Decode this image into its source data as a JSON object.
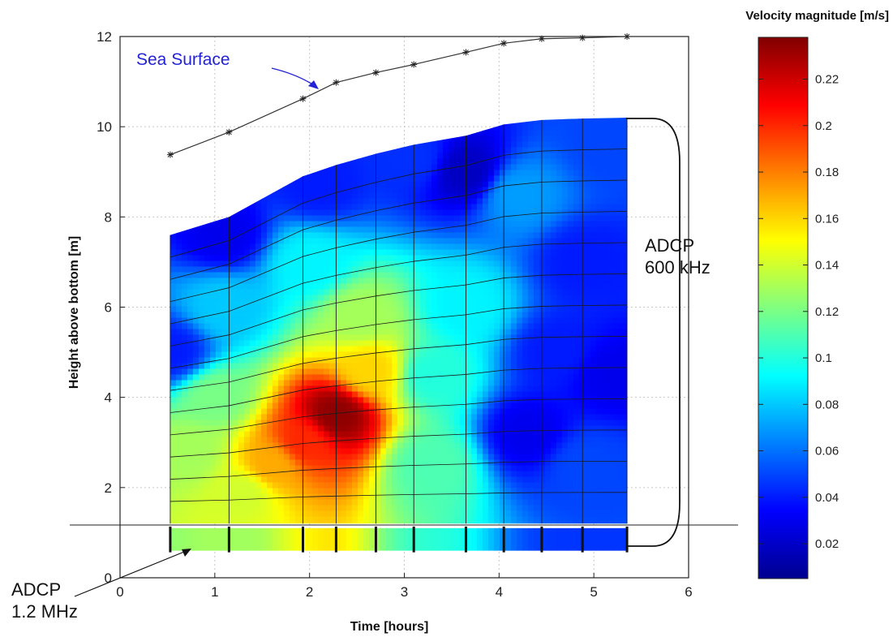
{
  "chart_data": {
    "type": "heatmap",
    "xlabel": "Time [hours]",
    "ylabel": "Height above bottom [m]",
    "xlim": [
      0,
      6
    ],
    "ylim": [
      0,
      12
    ],
    "xticks": [
      "0",
      "1",
      "2",
      "3",
      "4",
      "5",
      "6"
    ],
    "yticks": [
      "0",
      "2",
      "4",
      "6",
      "8",
      "10",
      "12"
    ],
    "grid": true,
    "colorbar": {
      "title": "Velocity magnitude [m/s]",
      "range": [
        0.005,
        0.238
      ],
      "ticks": [
        "0.02",
        "0.04",
        "0.06",
        "0.08",
        "0.1",
        "0.12",
        "0.14",
        "0.16",
        "0.18",
        "0.2",
        "0.22"
      ],
      "colormap": "jet"
    },
    "sea_surface": {
      "label": "Sea Surface",
      "x": [
        0.53,
        1.15,
        1.93,
        2.28,
        2.7,
        3.1,
        3.65,
        4.05,
        4.45,
        4.88,
        5.35
      ],
      "y": [
        9.38,
        9.88,
        10.62,
        10.98,
        11.2,
        11.38,
        11.65,
        11.85,
        11.95,
        11.97,
        12.0
      ]
    },
    "adcp_600khz": {
      "label": "ADCP\n600 kHz",
      "profile_times": [
        0.53,
        1.15,
        1.93,
        2.28,
        2.7,
        3.1,
        3.65,
        4.05,
        4.45,
        4.88,
        5.35
      ],
      "bottom_heights": [
        1.2,
        1.2,
        1.2,
        1.2,
        1.2,
        1.2,
        1.2,
        1.2,
        1.2,
        1.2,
        1.2
      ],
      "top_heights": [
        7.6,
        8.0,
        8.9,
        9.15,
        9.4,
        9.6,
        9.8,
        10.05,
        10.15,
        10.18,
        10.2
      ],
      "bins_per_profile": 13
    },
    "adcp_1_2mhz": {
      "label": "ADCP\n1.2 MHz",
      "profile_times": [
        0.53,
        1.15,
        1.93,
        2.28,
        2.7,
        3.1,
        3.65,
        4.05,
        4.45,
        4.88,
        5.35
      ],
      "bottom_heights": [
        0.6,
        0.6,
        0.6,
        0.6,
        0.6,
        0.6,
        0.6,
        0.6,
        0.6,
        0.6,
        0.6
      ],
      "top_heights": [
        1.1,
        1.1,
        1.1,
        1.1,
        1.1,
        1.1,
        1.1,
        1.1,
        1.1,
        1.1,
        1.1
      ]
    },
    "velocity_hotspots": [
      {
        "t": 2.28,
        "h": 3.6,
        "v": 0.235
      },
      {
        "t": 1.95,
        "h": 3.0,
        "v": 0.2
      },
      {
        "t": 1.6,
        "h": 2.5,
        "v": 0.17
      },
      {
        "t": 2.65,
        "h": 4.6,
        "v": 0.16
      },
      {
        "t": 2.55,
        "h": 5.8,
        "v": 0.13
      },
      {
        "t": 1.3,
        "h": 1.9,
        "v": 0.14
      },
      {
        "t": 0.75,
        "h": 2.8,
        "v": 0.13
      },
      {
        "t": 1.0,
        "h": 4.0,
        "v": 0.12
      },
      {
        "t": 3.3,
        "h": 2.5,
        "v": 0.11
      },
      {
        "t": 3.3,
        "h": 4.5,
        "v": 0.1
      },
      {
        "t": 3.65,
        "h": 6.0,
        "v": 0.09
      },
      {
        "t": 2.0,
        "h": 7.0,
        "v": 0.09
      },
      {
        "t": 1.1,
        "h": 6.0,
        "v": 0.08
      },
      {
        "t": 4.2,
        "h": 8.5,
        "v": 0.07
      },
      {
        "t": 1.1,
        "h": 7.6,
        "v": 0.03
      },
      {
        "t": 0.55,
        "h": 5.0,
        "v": 0.04
      },
      {
        "t": 2.1,
        "h": 8.7,
        "v": 0.04
      },
      {
        "t": 3.1,
        "h": 9.3,
        "v": 0.045
      },
      {
        "t": 3.65,
        "h": 9.0,
        "v": 0.02
      },
      {
        "t": 4.6,
        "h": 5.0,
        "v": 0.04
      },
      {
        "t": 5.2,
        "h": 4.5,
        "v": 0.03
      },
      {
        "t": 4.3,
        "h": 3.2,
        "v": 0.03
      },
      {
        "t": 4.9,
        "h": 7.0,
        "v": 0.04
      },
      {
        "t": 4.9,
        "h": 2.5,
        "v": 0.05
      },
      {
        "t": 5.2,
        "h": 9.6,
        "v": 0.05
      }
    ]
  }
}
